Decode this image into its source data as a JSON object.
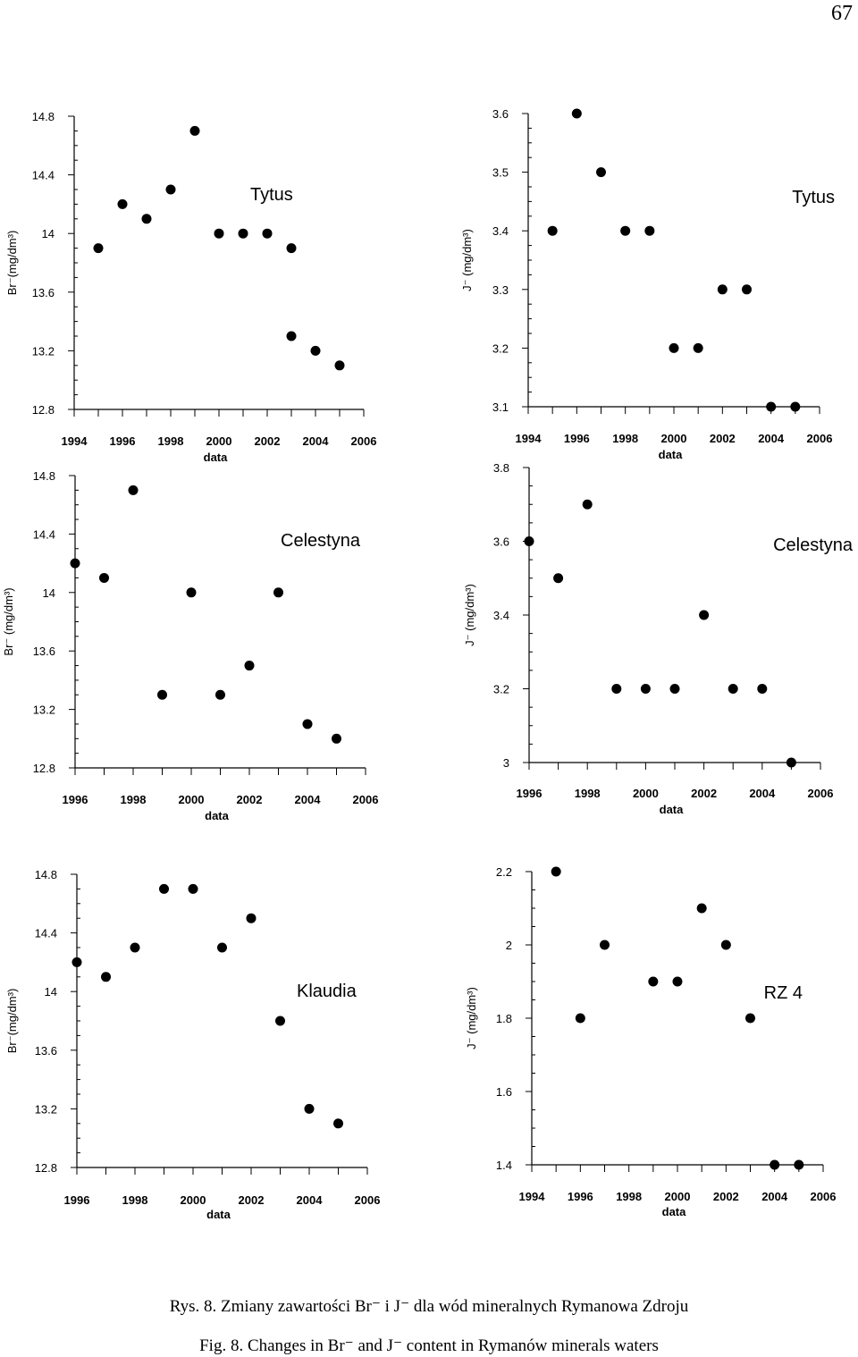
{
  "page_number": "67",
  "caption_pl": "Rys. 8. Zmiany zawartości Br⁻ i J⁻ dla wód mineralnych Rymanowa Zdroju",
  "caption_en": "Fig. 8. Changes in Br⁻ and J⁻ content in Rymanów minerals waters",
  "chart_data": [
    {
      "type": "scatter",
      "title": "Tytus",
      "xlabel": "data",
      "ylabel": "Br⁻(mg/dm³)",
      "xlim": [
        1994,
        2006
      ],
      "ylim": [
        12.8,
        14.8
      ],
      "xticks": [
        "1994",
        "1996",
        "1998",
        "2000",
        "2002",
        "2004",
        "2006"
      ],
      "yticks": [
        "12.8",
        "13.2",
        "13.6",
        "14",
        "14.4",
        "14.8"
      ],
      "x": [
        1995,
        1996,
        1997,
        1998,
        1999,
        2000,
        2001,
        2002,
        2003,
        2003,
        2004,
        2005
      ],
      "y": [
        13.9,
        14.2,
        14.1,
        14.3,
        14.7,
        14.0,
        14.0,
        14.0,
        13.9,
        13.3,
        13.2,
        13.1
      ]
    },
    {
      "type": "scatter",
      "title": "Tytus",
      "xlabel": "data",
      "ylabel": "J⁻ (mg/dm³)",
      "xlim": [
        1994,
        2006
      ],
      "ylim": [
        3.1,
        3.6
      ],
      "xticks": [
        "1994",
        "1996",
        "1998",
        "2000",
        "2002",
        "2004",
        "2006"
      ],
      "yticks": [
        "3.1",
        "3.2",
        "3.3",
        "3.4",
        "3.5",
        "3.6"
      ],
      "x": [
        1995,
        1996,
        1997,
        1998,
        1999,
        2000,
        2001,
        2002,
        2003,
        2004,
        2005
      ],
      "y": [
        3.4,
        3.6,
        3.5,
        3.4,
        3.4,
        3.2,
        3.2,
        3.3,
        3.3,
        3.1,
        3.1
      ]
    },
    {
      "type": "scatter",
      "title": "Celestyna",
      "xlabel": "data",
      "ylabel": "Br⁻ (mg/dm³)",
      "xlim": [
        1996,
        2006
      ],
      "ylim": [
        12.8,
        14.8
      ],
      "xticks": [
        "1996",
        "1998",
        "2000",
        "2002",
        "2004",
        "2006"
      ],
      "yticks": [
        "12.8",
        "13.2",
        "13.6",
        "14",
        "14.4",
        "14.8"
      ],
      "x": [
        1996,
        1997,
        1998,
        1999,
        2000,
        2001,
        2002,
        2003,
        2004,
        2005
      ],
      "y": [
        14.2,
        14.1,
        14.7,
        13.3,
        14.0,
        13.3,
        13.5,
        14.0,
        13.1,
        13.0
      ]
    },
    {
      "type": "scatter",
      "title": "Celestyna",
      "xlabel": "data",
      "ylabel": "J⁻ (mg/dm³)",
      "xlim": [
        1996,
        2006
      ],
      "ylim": [
        3.0,
        3.8
      ],
      "xticks": [
        "1996",
        "1998",
        "2000",
        "2002",
        "2004",
        "2006"
      ],
      "yticks": [
        "3",
        "3.2",
        "3.4",
        "3.6",
        "3.8"
      ],
      "x": [
        1996,
        1997,
        1998,
        1999,
        2000,
        2001,
        2002,
        2003,
        2004,
        2005
      ],
      "y": [
        3.6,
        3.5,
        3.7,
        3.2,
        3.2,
        3.2,
        3.4,
        3.2,
        3.2,
        3.0
      ]
    },
    {
      "type": "scatter",
      "title": "Klaudia",
      "xlabel": "data",
      "ylabel": "Br⁻(mg/dm³)",
      "xlim": [
        1996,
        2006
      ],
      "ylim": [
        12.8,
        14.8
      ],
      "xticks": [
        "1996",
        "1998",
        "2000",
        "2002",
        "2004",
        "2006"
      ],
      "yticks": [
        "12.8",
        "13.2",
        "13.6",
        "14",
        "14.4",
        "14.8"
      ],
      "x": [
        1996,
        1997,
        1998,
        1999,
        2000,
        2001,
        2002,
        2003,
        2004,
        2005
      ],
      "y": [
        14.2,
        14.1,
        14.3,
        14.7,
        14.7,
        14.3,
        14.5,
        13.8,
        13.2,
        13.1
      ]
    },
    {
      "type": "scatter",
      "title": "RZ 4",
      "xlabel": "data",
      "ylabel": "J⁻ (mg/dm³)",
      "xlim": [
        1994,
        2006
      ],
      "ylim": [
        1.4,
        2.2
      ],
      "xticks": [
        "1994",
        "1996",
        "1998",
        "2000",
        "2002",
        "2004",
        "2006"
      ],
      "yticks": [
        "1.4",
        "1.6",
        "1.8",
        "2",
        "2.2"
      ],
      "x": [
        1995,
        1996,
        1997,
        1999,
        2000,
        2001,
        2002,
        2003,
        2004,
        2005
      ],
      "y": [
        2.2,
        1.8,
        2.0,
        1.9,
        1.9,
        2.1,
        2.0,
        1.8,
        1.4,
        1.4
      ]
    }
  ]
}
